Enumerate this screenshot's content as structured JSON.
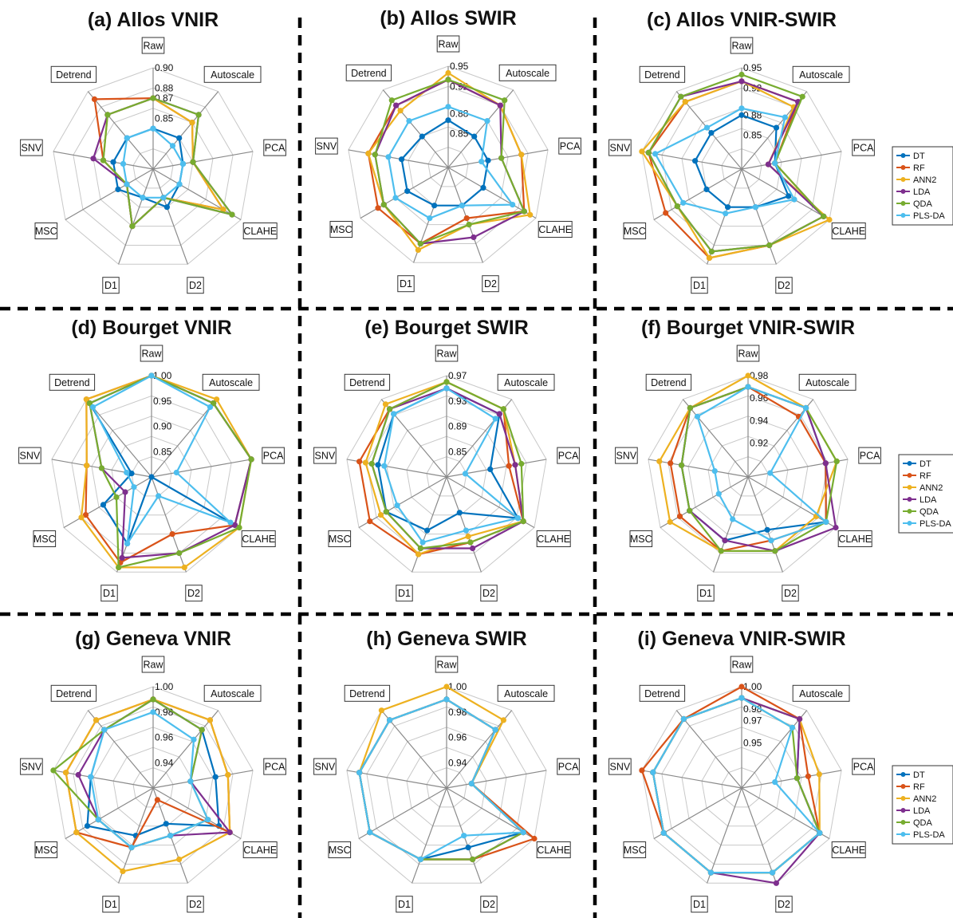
{
  "axes": [
    "Raw",
    "Autoscale",
    "PCA",
    "CLAHE",
    "D2",
    "D1",
    "MSC",
    "SNV",
    "Detrend"
  ],
  "legend": [
    "DT",
    "RF",
    "ANN2",
    "LDA",
    "QDA",
    "PLS-DA"
  ],
  "colors": {
    "DT": "#0072BD",
    "RF": "#D95319",
    "ANN2": "#EDB120",
    "LDA": "#7E2F8E",
    "QDA": "#77AC30",
    "PLS-DA": "#4DBEEE"
  },
  "chart_data": [
    {
      "title": "(a) Allos VNIR",
      "type": "radar",
      "rlim": [
        0.8,
        0.9
      ],
      "ticks": [
        "0.90",
        "0.88",
        "0.87",
        "0.85"
      ],
      "tick_values": [
        0.9,
        0.88,
        0.87,
        0.85
      ],
      "legend": false,
      "series": [
        {
          "name": "DT",
          "values": [
            0.84,
            0.84,
            0.83,
            0.83,
            0.84,
            0.83,
            0.84,
            0.84,
            0.84
          ]
        },
        {
          "name": "RF",
          "values": [
            0.87,
            0.86,
            0.84,
            0.88,
            0.83,
            0.86,
            0.83,
            0.85,
            0.89
          ]
        },
        {
          "name": "ANN2",
          "values": [
            0.87,
            0.86,
            0.84,
            0.88,
            0.83,
            0.86,
            0.83,
            0.85,
            0.87
          ]
        },
        {
          "name": "LDA",
          "values": [
            0.87,
            0.87,
            0.84,
            0.89,
            0.83,
            0.86,
            0.83,
            0.86,
            0.87
          ]
        },
        {
          "name": "QDA",
          "values": [
            0.87,
            0.87,
            0.84,
            0.89,
            0.83,
            0.86,
            0.83,
            0.85,
            0.87
          ]
        },
        {
          "name": "PLS-DA",
          "values": [
            0.84,
            0.83,
            0.83,
            0.83,
            0.83,
            0.83,
            0.83,
            0.83,
            0.84
          ]
        }
      ]
    },
    {
      "title": "(b) Allos SWIR",
      "type": "radar",
      "rlim": [
        0.8,
        0.95
      ],
      "ticks": [
        "0.95",
        "0.92",
        "0.88",
        "0.85"
      ],
      "tick_values": [
        0.95,
        0.92,
        0.88,
        0.85
      ],
      "legend": false,
      "series": [
        {
          "name": "DT",
          "values": [
            0.87,
            0.86,
            0.86,
            0.86,
            0.86,
            0.86,
            0.87,
            0.87,
            0.86
          ]
        },
        {
          "name": "RF",
          "values": [
            0.93,
            0.92,
            0.91,
            0.93,
            0.88,
            0.92,
            0.92,
            0.92,
            0.92
          ]
        },
        {
          "name": "ANN2",
          "values": [
            0.94,
            0.92,
            0.91,
            0.94,
            0.89,
            0.93,
            0.91,
            0.92,
            0.91
          ]
        },
        {
          "name": "LDA",
          "values": [
            0.93,
            0.92,
            0.88,
            0.93,
            0.91,
            0.92,
            0.91,
            0.91,
            0.92
          ]
        },
        {
          "name": "QDA",
          "values": [
            0.93,
            0.93,
            0.88,
            0.93,
            0.89,
            0.92,
            0.91,
            0.91,
            0.93
          ]
        },
        {
          "name": "PLS-DA",
          "values": [
            0.89,
            0.89,
            0.85,
            0.91,
            0.86,
            0.88,
            0.89,
            0.89,
            0.89
          ]
        }
      ]
    },
    {
      "title": "(c) Allos VNIR-SWIR",
      "type": "radar",
      "rlim": [
        0.8,
        0.95
      ],
      "ticks": [
        "0.95",
        "0.92",
        "0.88",
        "0.85"
      ],
      "tick_values": [
        0.95,
        0.92,
        0.88,
        0.85
      ],
      "legend": true,
      "series": [
        {
          "name": "DT",
          "values": [
            0.88,
            0.88,
            0.85,
            0.88,
            0.86,
            0.86,
            0.86,
            0.87,
            0.87
          ]
        },
        {
          "name": "RF",
          "values": [
            0.93,
            0.93,
            0.85,
            0.94,
            0.92,
            0.94,
            0.93,
            0.94,
            0.93
          ]
        },
        {
          "name": "ANN2",
          "values": [
            0.93,
            0.92,
            0.84,
            0.95,
            0.92,
            0.94,
            0.91,
            0.95,
            0.93
          ]
        },
        {
          "name": "LDA",
          "values": [
            0.93,
            0.93,
            0.84,
            0.94,
            0.92,
            0.93,
            0.91,
            0.94,
            0.94
          ]
        },
        {
          "name": "QDA",
          "values": [
            0.94,
            0.94,
            0.85,
            0.94,
            0.92,
            0.93,
            0.91,
            0.94,
            0.94
          ]
        },
        {
          "name": "PLS-DA",
          "values": [
            0.89,
            0.9,
            0.85,
            0.89,
            0.86,
            0.87,
            0.9,
            0.93,
            0.88
          ]
        }
      ]
    },
    {
      "title": "(d) Bourget VNIR",
      "type": "radar",
      "rlim": [
        0.8,
        1.0
      ],
      "ticks": [
        "1.00",
        "0.95",
        "0.90",
        "0.85"
      ],
      "tick_values": [
        1.0,
        0.95,
        0.9,
        0.85
      ],
      "legend": false,
      "series": [
        {
          "name": "DT",
          "values": [
            1.0,
            0.99,
            1.0,
            0.99,
            0.78,
            0.94,
            0.91,
            0.84,
            0.99
          ]
        },
        {
          "name": "RF",
          "values": [
            1.0,
            0.99,
            1.0,
            0.99,
            0.92,
            0.98,
            0.95,
            0.93,
            1.0
          ]
        },
        {
          "name": "ANN2",
          "values": [
            1.0,
            1.0,
            1.0,
            1.0,
            0.99,
            0.99,
            0.96,
            0.93,
            1.0
          ]
        },
        {
          "name": "LDA",
          "values": [
            1.0,
            0.99,
            1.0,
            0.99,
            0.96,
            0.97,
            0.86,
            0.9,
            0.99
          ]
        },
        {
          "name": "QDA",
          "values": [
            1.0,
            0.99,
            1.0,
            1.0,
            0.96,
            0.99,
            0.88,
            0.9,
            0.99
          ]
        },
        {
          "name": "PLS-DA",
          "values": [
            1.0,
            0.98,
            0.85,
            0.98,
            0.84,
            0.94,
            0.84,
            0.85,
            0.98
          ]
        }
      ]
    },
    {
      "title": "(e) Bourget SWIR",
      "type": "radar",
      "rlim": [
        0.81,
        0.97
      ],
      "ticks": [
        "0.97",
        "0.93",
        "0.89",
        "0.85"
      ],
      "tick_values": [
        0.97,
        0.93,
        0.89,
        0.85
      ],
      "legend": false,
      "series": [
        {
          "name": "DT",
          "values": [
            0.95,
            0.94,
            0.88,
            0.94,
            0.87,
            0.9,
            0.92,
            0.92,
            0.94
          ]
        },
        {
          "name": "RF",
          "values": [
            0.96,
            0.95,
            0.91,
            0.95,
            0.92,
            0.94,
            0.95,
            0.95,
            0.95
          ]
        },
        {
          "name": "ANN2",
          "values": [
            0.96,
            0.95,
            0.92,
            0.95,
            0.91,
            0.94,
            0.93,
            0.94,
            0.96
          ]
        },
        {
          "name": "LDA",
          "values": [
            0.95,
            0.94,
            0.92,
            0.95,
            0.93,
            0.93,
            0.92,
            0.93,
            0.95
          ]
        },
        {
          "name": "QDA",
          "values": [
            0.96,
            0.95,
            0.93,
            0.95,
            0.92,
            0.93,
            0.92,
            0.93,
            0.95
          ]
        },
        {
          "name": "PLS-DA",
          "values": [
            0.95,
            0.93,
            0.84,
            0.94,
            0.9,
            0.92,
            0.9,
            0.91,
            0.94
          ]
        }
      ]
    },
    {
      "title": "(f) Bourget VNIR-SWIR",
      "type": "radar",
      "rlim": [
        0.89,
        0.98
      ],
      "ticks": [
        "0.98",
        "0.96",
        "0.94",
        "0.92"
      ],
      "tick_values": [
        0.98,
        0.96,
        0.94,
        0.92
      ],
      "legend": true,
      "series": [
        {
          "name": "DT",
          "values": [
            0.97,
            0.97,
            0.96,
            0.97,
            0.94,
            0.95,
            0.95,
            0.95,
            0.97
          ]
        },
        {
          "name": "RF",
          "values": [
            0.97,
            0.96,
            0.96,
            0.97,
            0.95,
            0.96,
            0.96,
            0.96,
            0.97
          ]
        },
        {
          "name": "ANN2",
          "values": [
            0.98,
            0.97,
            0.97,
            0.96,
            0.96,
            0.96,
            0.97,
            0.97,
            0.97
          ]
        },
        {
          "name": "LDA",
          "values": [
            0.97,
            0.97,
            0.96,
            0.98,
            0.96,
            0.95,
            0.95,
            0.95,
            0.97
          ]
        },
        {
          "name": "QDA",
          "values": [
            0.97,
            0.97,
            0.97,
            0.97,
            0.96,
            0.96,
            0.95,
            0.95,
            0.97
          ]
        },
        {
          "name": "PLS-DA",
          "values": [
            0.97,
            0.97,
            0.91,
            0.97,
            0.95,
            0.93,
            0.92,
            0.92,
            0.96
          ]
        }
      ]
    },
    {
      "title": "(g) Geneva VNIR",
      "type": "radar",
      "rlim": [
        0.92,
        1.0
      ],
      "ticks": [
        "1.00",
        "0.98",
        "0.96",
        "0.94"
      ],
      "tick_values": [
        1.0,
        0.98,
        0.96,
        0.94
      ],
      "legend": false,
      "series": [
        {
          "name": "DT",
          "values": [
            0.99,
            0.98,
            0.97,
            0.98,
            0.95,
            0.96,
            0.98,
            0.97,
            0.98
          ]
        },
        {
          "name": "RF",
          "values": [
            0.99,
            0.99,
            0.98,
            0.99,
            0.93,
            0.97,
            0.99,
            0.99,
            0.99
          ]
        },
        {
          "name": "ANN2",
          "values": [
            0.99,
            0.99,
            0.98,
            0.99,
            0.98,
            0.99,
            0.99,
            0.99,
            0.99
          ]
        },
        {
          "name": "LDA",
          "values": [
            0.99,
            0.98,
            0.95,
            0.99,
            0.96,
            0.97,
            0.97,
            0.98,
            0.98
          ]
        },
        {
          "name": "QDA",
          "values": [
            0.99,
            0.98,
            0.95,
            0.97,
            0.96,
            0.97,
            0.97,
            1.0,
            0.98
          ]
        },
        {
          "name": "PLS-DA",
          "values": [
            0.98,
            0.97,
            0.95,
            0.97,
            0.96,
            0.97,
            0.97,
            0.97,
            0.98
          ]
        }
      ]
    },
    {
      "title": "(h) Geneva SWIR",
      "type": "radar",
      "rlim": [
        0.92,
        1.0
      ],
      "ticks": [
        "1.00",
        "0.98",
        "0.96",
        "0.94"
      ],
      "tick_values": [
        1.0,
        0.98,
        0.96,
        0.94
      ],
      "legend": false,
      "series": [
        {
          "name": "DT",
          "values": [
            0.99,
            0.98,
            0.94,
            0.99,
            0.97,
            0.98,
            0.99,
            0.99,
            0.99
          ]
        },
        {
          "name": "RF",
          "values": [
            0.99,
            0.98,
            0.94,
            1.0,
            0.98,
            0.98,
            0.99,
            0.99,
            0.99
          ]
        },
        {
          "name": "ANN2",
          "values": [
            1.0,
            0.99,
            0.94,
            0.99,
            0.98,
            0.98,
            0.99,
            0.99,
            1.0
          ]
        },
        {
          "name": "LDA",
          "values": [
            0.99,
            0.98,
            0.94,
            0.99,
            0.98,
            0.98,
            0.99,
            0.99,
            0.99
          ]
        },
        {
          "name": "QDA",
          "values": [
            0.99,
            0.98,
            0.94,
            0.99,
            0.98,
            0.98,
            0.99,
            0.99,
            0.99
          ]
        },
        {
          "name": "PLS-DA",
          "values": [
            0.99,
            0.98,
            0.94,
            0.99,
            0.96,
            0.98,
            0.99,
            0.99,
            0.99
          ]
        }
      ]
    },
    {
      "title": "(i) Geneva VNIR-SWIR",
      "type": "radar",
      "rlim": [
        0.91,
        1.0
      ],
      "ticks": [
        "1.00",
        "0.98",
        "0.97",
        "0.95"
      ],
      "tick_values": [
        1.0,
        0.98,
        0.97,
        0.95
      ],
      "legend": true,
      "series": [
        {
          "name": "DT",
          "values": [
            0.99,
            0.99,
            0.96,
            0.99,
            0.99,
            0.99,
            0.99,
            0.99,
            0.99
          ]
        },
        {
          "name": "RF",
          "values": [
            1.0,
            0.99,
            0.97,
            0.99,
            0.99,
            0.99,
            0.99,
            1.0,
            0.99
          ]
        },
        {
          "name": "ANN2",
          "values": [
            0.99,
            0.99,
            0.98,
            0.99,
            0.99,
            0.99,
            0.99,
            0.99,
            0.99
          ]
        },
        {
          "name": "LDA",
          "values": [
            0.99,
            0.99,
            0.96,
            0.99,
            1.0,
            0.99,
            0.99,
            0.99,
            0.99
          ]
        },
        {
          "name": "QDA",
          "values": [
            0.99,
            0.98,
            0.96,
            0.99,
            0.99,
            0.99,
            0.99,
            0.99,
            0.99
          ]
        },
        {
          "name": "PLS-DA",
          "values": [
            0.99,
            0.98,
            0.94,
            0.99,
            0.99,
            0.99,
            0.99,
            0.99,
            0.99
          ]
        }
      ]
    }
  ]
}
